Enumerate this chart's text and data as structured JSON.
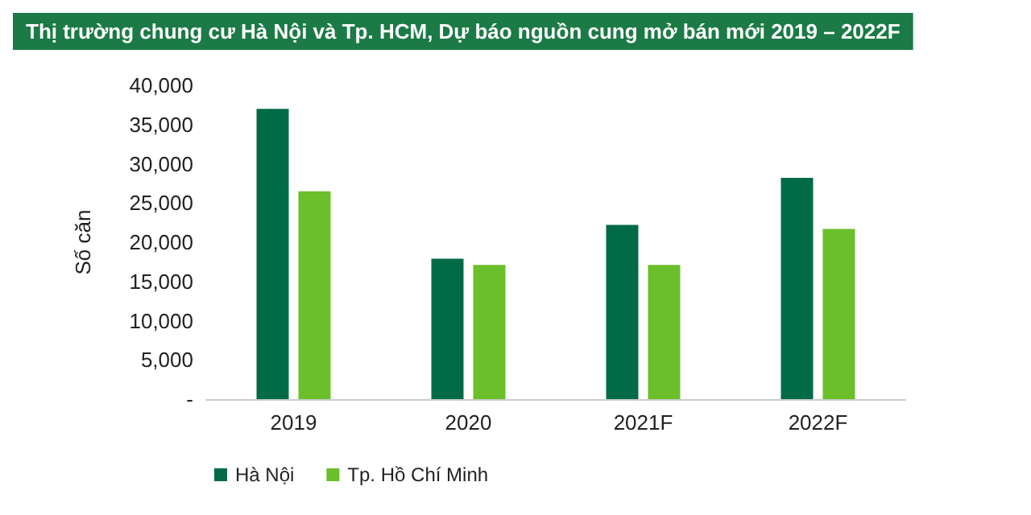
{
  "chart_data": {
    "type": "bar",
    "title": "Thị trường chung cư Hà Nội và Tp. HCM, Dự báo nguồn cung mở bán mới 2019 – 2022F",
    "ylabel": "Số căn",
    "categories": [
      "2019",
      "2020",
      "2021F",
      "2022F"
    ],
    "series": [
      {
        "name": "Hà Nội",
        "color": "#006b46",
        "values": [
          37000,
          17900,
          22200,
          28200
        ]
      },
      {
        "name": "Tp. Hồ Chí Minh",
        "color": "#6abf2a",
        "values": [
          26500,
          17100,
          17100,
          21700
        ]
      }
    ],
    "ylim": [
      0,
      40000
    ],
    "yticks": [
      {
        "value": 0,
        "label": "-"
      },
      {
        "value": 5000,
        "label": "5,000"
      },
      {
        "value": 10000,
        "label": "10,000"
      },
      {
        "value": 15000,
        "label": "15,000"
      },
      {
        "value": 20000,
        "label": "20,000"
      },
      {
        "value": 25000,
        "label": "25,000"
      },
      {
        "value": 30000,
        "label": "30,000"
      },
      {
        "value": 35000,
        "label": "35,000"
      },
      {
        "value": 40000,
        "label": "40,000"
      }
    ],
    "grid": false,
    "legend": "bottom left"
  }
}
